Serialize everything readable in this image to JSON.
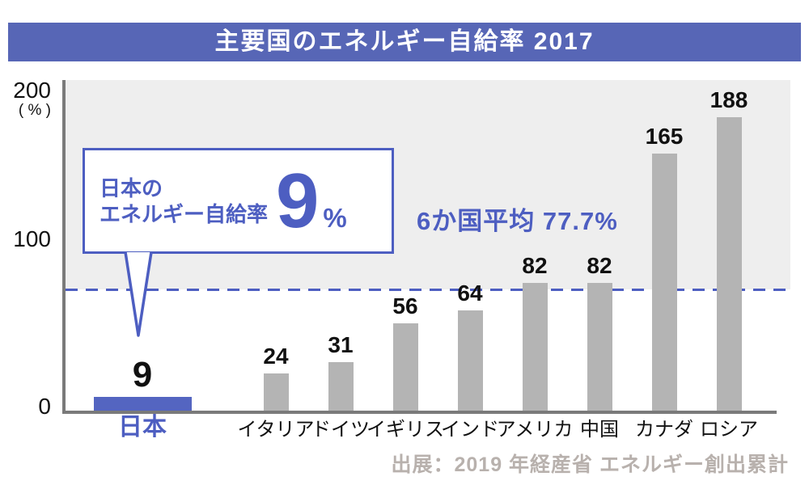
{
  "chart_data": {
    "type": "bar",
    "title": "主要国のエネルギー自給率 2017",
    "categories": [
      "日本",
      "イタリア",
      "ドイツ",
      "イギリス",
      "インド",
      "アメリカ",
      "中国",
      "カナダ",
      "ロシア"
    ],
    "values": [
      9,
      24,
      31,
      56,
      64,
      82,
      82,
      165,
      188
    ],
    "highlight_index": 0,
    "average_line": 77.7,
    "average_label": "6か国平均 77.7%",
    "ylim": [
      0,
      200
    ],
    "y_ticks": [
      0,
      100,
      200
    ],
    "y_unit_label": "( % )",
    "grid": false,
    "legend": "none",
    "bar_color": "#b4b4b4",
    "highlight_color": "#5465c1"
  },
  "callout": {
    "line1": "日本の",
    "line2": "エネルギー自給率",
    "value": "9",
    "unit": "%"
  },
  "source": "出展：2019 年経産省 エネルギー創出累計",
  "colors": {
    "banner": "#5766b6",
    "accent_blue": "#4d5ec1",
    "plot_background": "#eeeeee",
    "axis": "#7a7a7a",
    "bar_gray": "#b4b4b4",
    "value_text": "#111111",
    "source_text": "#b8b1ad"
  }
}
